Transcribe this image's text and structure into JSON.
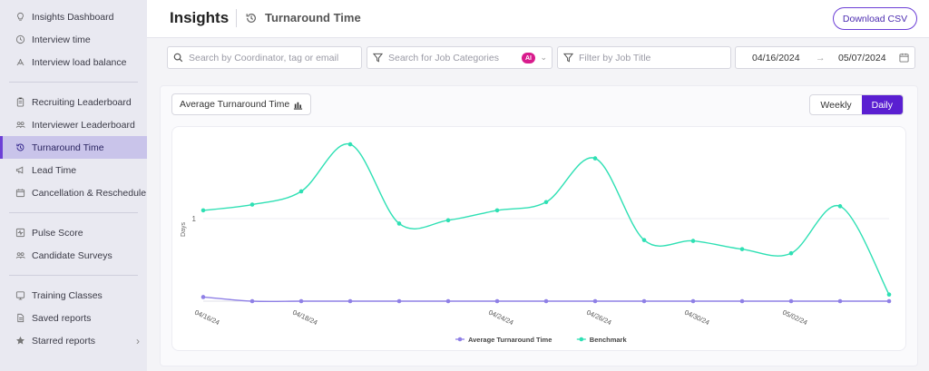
{
  "sidebar": {
    "groups": [
      [
        {
          "label": "Insights Dashboard",
          "icon": "lightbulb-icon"
        },
        {
          "label": "Interview time",
          "icon": "clock-icon"
        },
        {
          "label": "Interview load balance",
          "icon": "scale-icon"
        }
      ],
      [
        {
          "label": "Recruiting Leaderboard",
          "icon": "clipboard-icon"
        },
        {
          "label": "Interviewer Leaderboard",
          "icon": "people-icon"
        },
        {
          "label": "Turnaround Time",
          "icon": "history-icon",
          "active": true
        },
        {
          "label": "Lead Time",
          "icon": "megaphone-icon"
        },
        {
          "label": "Cancellation & Reschedule",
          "icon": "calendar-icon"
        }
      ],
      [
        {
          "label": "Pulse Score",
          "icon": "pulse-icon"
        },
        {
          "label": "Candidate Surveys",
          "icon": "survey-icon"
        }
      ],
      [
        {
          "label": "Training Classes",
          "icon": "training-icon"
        },
        {
          "label": "Saved reports",
          "icon": "document-icon"
        },
        {
          "label": "Starred reports",
          "icon": "star-icon",
          "chevron": true
        }
      ]
    ]
  },
  "header": {
    "title": "Insights",
    "subtitle": "Turnaround Time",
    "download_label": "Download CSV"
  },
  "filters": {
    "search_placeholder": "Search by Coordinator, tag or email",
    "category_placeholder": "Search for Job Categories",
    "ai_badge": "AI",
    "title_placeholder": "Filter by Job Title",
    "date_from": "04/16/2024",
    "date_arrow": "→",
    "date_to": "05/07/2024"
  },
  "card": {
    "metric_label": "Average Turnaround Time",
    "toggle": {
      "weekly": "Weekly",
      "daily": "Daily",
      "selected": "Daily"
    }
  },
  "chart_data": {
    "type": "line",
    "ylabel": "Days",
    "ylim": [
      0,
      2
    ],
    "y_ticks": [
      1
    ],
    "x": [
      "04/16/24",
      "04/17/24",
      "04/18/24",
      "04/19/24",
      "04/22/24",
      "04/23/24",
      "04/24/24",
      "04/25/24",
      "04/26/24",
      "04/29/24",
      "04/30/24",
      "05/01/24",
      "05/02/24",
      "05/03/24",
      "05/06/24"
    ],
    "x_tick_labels": [
      "04/16/24",
      "",
      "04/18/24",
      "",
      "",
      "",
      "04/24/24",
      "",
      "04/26/24",
      "",
      "04/30/24",
      "",
      "05/02/24",
      "",
      ""
    ],
    "series": [
      {
        "name": "Average Turnaround Time",
        "color": "#8f80e6",
        "values": [
          0.05,
          0.0,
          0.0,
          0.0,
          0.0,
          0.0,
          0.0,
          0.0,
          0.0,
          0.0,
          0.0,
          0.0,
          0.0,
          0.0,
          0.0
        ]
      },
      {
        "name": "Benchmark",
        "color": "#2fe0b4",
        "values": [
          1.1,
          1.17,
          1.33,
          1.9,
          0.94,
          0.98,
          1.1,
          1.2,
          1.73,
          0.74,
          0.73,
          0.63,
          0.58,
          1.15,
          0.08
        ]
      }
    ],
    "grid": true,
    "legend": "bottom-center"
  }
}
